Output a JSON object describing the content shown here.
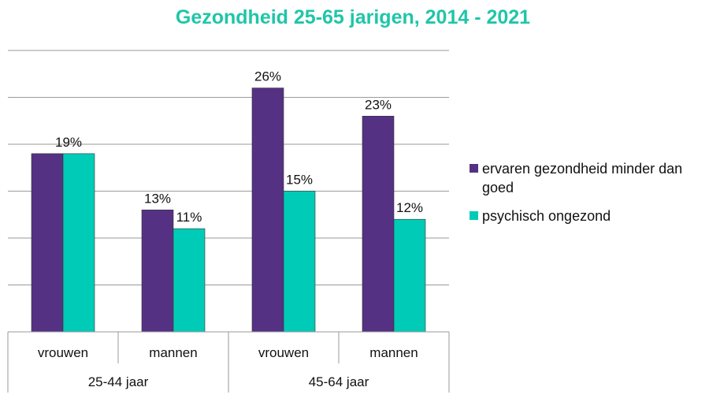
{
  "chart_data": {
    "type": "bar",
    "title": "Gezondheid 25-65 jarigen, 2014 - 2021",
    "categories": [
      "vrouwen",
      "mannen",
      "vrouwen",
      "mannen"
    ],
    "groups": [
      {
        "label": "25-44 jaar",
        "categories": [
          "vrouwen",
          "mannen"
        ]
      },
      {
        "label": "45-64 jaar",
        "categories": [
          "vrouwen",
          "mannen"
        ]
      }
    ],
    "series": [
      {
        "name": "ervaren gezondheid minder dan goed",
        "values": [
          19,
          13,
          26,
          23
        ],
        "labels": [
          "",
          "13%",
          "26%",
          "23%"
        ],
        "color": "#553183"
      },
      {
        "name": "psychisch ongezond",
        "values": [
          19,
          11,
          15,
          12
        ],
        "labels": [
          "19%",
          "11%",
          "15%",
          "12%"
        ],
        "color": "#00cbb7"
      }
    ],
    "ylim": [
      0,
      30
    ],
    "ytick_step": 5,
    "ytick_labels_shown": false,
    "grid": true,
    "legend_position": "right",
    "title_color": "#1fc6a8"
  }
}
